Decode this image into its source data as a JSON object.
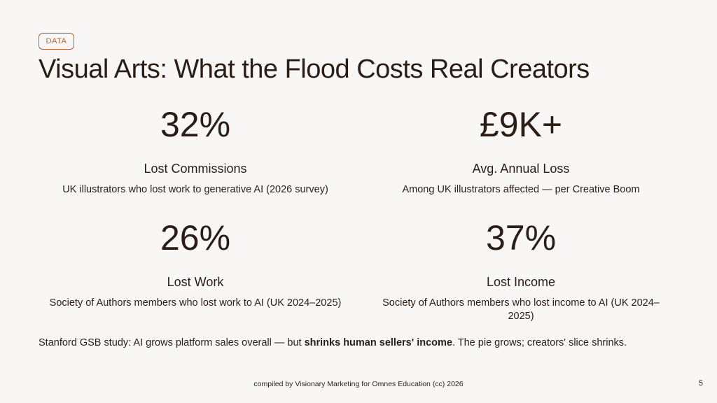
{
  "badge": "DATA",
  "title": "Visual Arts: What the Flood Costs Real Creators",
  "stats": [
    {
      "value": "32%",
      "label": "Lost Commissions",
      "description": "UK illustrators who lost work to generative AI (2026 survey)"
    },
    {
      "value": "£9K+",
      "label": "Avg. Annual Loss",
      "description": "Among UK illustrators affected — per Creative Boom"
    },
    {
      "value": "26%",
      "label": "Lost Work",
      "description": "Society of Authors members who lost work to AI (UK 2024–2025)"
    },
    {
      "value": "37%",
      "label": "Lost Income",
      "description": "Society of Authors members who lost income to AI (UK 2024–2025)"
    }
  ],
  "footnote": {
    "before": "Stanford GSB study: AI grows platform sales overall — but ",
    "emphasis": "shrinks human sellers' income",
    "after": ". The pie grows; creators' slice shrinks."
  },
  "credit": "compiled by Visionary Marketing for Omnes Education (cc) 2026",
  "page_number": "5"
}
